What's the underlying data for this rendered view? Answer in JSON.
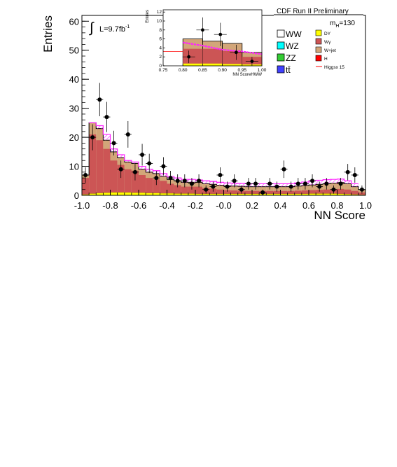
{
  "chart_data": {
    "type": "bar",
    "title": "CDF Run II Preliminary",
    "luminosity": "L=9.7fb",
    "lumi_superscript": "-1",
    "integral_symbol": "∫",
    "xlabel": "NN Score",
    "ylabel": "Entries",
    "xlim": [
      -1.0,
      1.0
    ],
    "ylim": [
      0,
      62
    ],
    "x_ticks": [
      "-1.0",
      "-0.8",
      "-0.6",
      "-0.4",
      "-0.2",
      "-0.0",
      "0.2",
      "0.4",
      "0.6",
      "0.8",
      "1.0"
    ],
    "y_ticks": [
      "0",
      "10",
      "20",
      "30",
      "40",
      "50",
      "60"
    ],
    "bin_edges": [
      -1.0,
      -0.95,
      -0.9,
      -0.85,
      -0.8,
      -0.75,
      -0.7,
      -0.65,
      -0.6,
      -0.55,
      -0.5,
      -0.45,
      -0.4,
      -0.35,
      -0.3,
      -0.25,
      -0.2,
      -0.15,
      -0.1,
      -0.05,
      0.0,
      0.05,
      0.1,
      0.15,
      0.2,
      0.25,
      0.3,
      0.35,
      0.4,
      0.45,
      0.5,
      0.55,
      0.6,
      0.65,
      0.7,
      0.75,
      0.8,
      0.85,
      0.9,
      0.95,
      1.0
    ],
    "background_total": [
      7,
      25,
      23,
      19,
      15,
      13,
      11.5,
      11,
      9,
      8,
      7.5,
      6.5,
      5.5,
      5,
      4.5,
      4.5,
      4.5,
      4,
      3.8,
      3.5,
      3.3,
      3.2,
      3.1,
      3,
      3,
      3,
      3,
      3,
      3,
      3,
      3.2,
      3.4,
      3.6,
      3.8,
      4,
      4.2,
      4.4,
      4,
      3,
      2
    ],
    "series": [
      {
        "name": "WW",
        "color": "#ffffff"
      },
      {
        "name": "WZ",
        "color": "#00ffff"
      },
      {
        "name": "ZZ",
        "color": "#33cc33"
      },
      {
        "name": "tt̄",
        "color": "#4040ff"
      },
      {
        "name": "DY",
        "color": "#ffff00",
        "values": [
          0.3,
          0.6,
          0.8,
          0.9,
          1,
          1,
          1,
          0.9,
          0.9,
          0.8,
          0.8,
          0.7,
          0.7,
          0.6,
          0.6,
          0.6,
          0.5,
          0.5,
          0.5,
          0.5,
          0.5,
          0.5,
          0.5,
          0.5,
          0.5,
          0.5,
          0.5,
          0.5,
          0.5,
          0.5,
          0.5,
          0.5,
          0.6,
          0.6,
          0.6,
          0.6,
          0.5,
          0.4,
          0.3,
          0.2
        ]
      },
      {
        "name": "Wγ",
        "color": "#cc5555",
        "values": [
          6,
          21,
          19,
          16,
          12,
          10.5,
          9,
          8.5,
          7,
          6,
          5.5,
          5,
          4,
          3.5,
          3,
          3,
          3,
          2.5,
          2.3,
          2,
          1.8,
          1.7,
          1.6,
          1.5,
          1.5,
          1.5,
          1.5,
          1.5,
          1.5,
          1.5,
          1.6,
          1.7,
          1.8,
          1.9,
          2,
          2.1,
          2.2,
          2,
          1.5,
          1
        ]
      },
      {
        "name": "W+jet",
        "color": "#d2a679"
      },
      {
        "name": "H",
        "color": "#ff0000"
      },
      {
        "name": "Higgsx 15",
        "color": "#ff0000"
      }
    ],
    "signal_x15": [
      null,
      25,
      24,
      21,
      16,
      14,
      12,
      11.5,
      10,
      9,
      8.5,
      7.5,
      6.5,
      6,
      5.5,
      5.5,
      5.3,
      5,
      4.8,
      4.5,
      4.3,
      4.2,
      4.1,
      4,
      4,
      4,
      4,
      4,
      4,
      4,
      4.3,
      4.6,
      5,
      5.2,
      5.4,
      5.5,
      5.6,
      5,
      4,
      null
    ],
    "data_points": {
      "x": [
        -0.975,
        -0.925,
        -0.875,
        -0.825,
        -0.775,
        -0.725,
        -0.675,
        -0.625,
        -0.575,
        -0.525,
        -0.475,
        -0.425,
        -0.375,
        -0.325,
        -0.275,
        -0.225,
        -0.175,
        -0.125,
        -0.075,
        -0.025,
        0.025,
        0.075,
        0.125,
        0.175,
        0.225,
        0.275,
        0.325,
        0.375,
        0.425,
        0.475,
        0.525,
        0.575,
        0.625,
        0.675,
        0.725,
        0.775,
        0.825,
        0.875,
        0.925,
        0.975
      ],
      "y": [
        7,
        20,
        33,
        27,
        18,
        9,
        21,
        8,
        14,
        11,
        6,
        10,
        6,
        5,
        5,
        4,
        5,
        2,
        3,
        7,
        3,
        5,
        2,
        4,
        4,
        1,
        4,
        3,
        9,
        3,
        4,
        4,
        5,
        3,
        4,
        2,
        4,
        8,
        7,
        2
      ]
    },
    "mass_label": "m",
    "mass_subscript": "H",
    "mass_value": "=130",
    "inset": {
      "xlabel": "NN ScoreHWW",
      "ylabel": "Entries",
      "xlim": [
        0.75,
        1.0
      ],
      "ylim": [
        0,
        12.5
      ],
      "x_ticks": [
        "0.75",
        "0.80",
        "0.85",
        "0.90",
        "0.95",
        "1.00"
      ],
      "y_ticks": [
        "0",
        "2",
        "4",
        "6",
        "8",
        "10",
        "12"
      ],
      "bin_edges": [
        0.8,
        0.85,
        0.9,
        0.95,
        1.0
      ],
      "background_total": [
        6,
        5.5,
        5,
        3
      ],
      "wgamma": [
        3.8,
        3.8,
        3.3,
        2
      ],
      "dy": [
        0.5,
        0.5,
        0.4,
        0.3
      ],
      "signal_x15": [
        5.2,
        4.5,
        3.6,
        3.2,
        2.6
      ],
      "signal_x": [
        0.8,
        0.85,
        0.9,
        0.95,
        1.0
      ],
      "data_points": {
        "x": [
          0.815,
          0.85,
          0.895,
          0.935,
          0.975
        ],
        "y": [
          2,
          8,
          7,
          3,
          1
        ]
      },
      "data_errors": [
        1.4,
        2.8,
        2.6,
        1.7,
        1
      ]
    }
  }
}
